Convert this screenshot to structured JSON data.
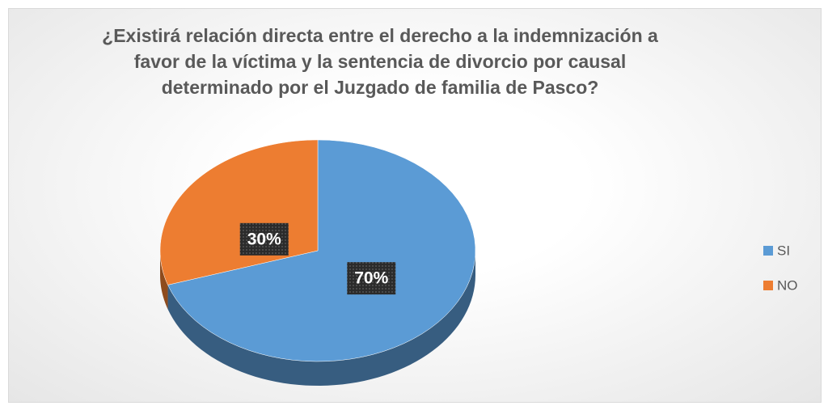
{
  "chart_data": {
    "type": "pie",
    "title": "¿Existirá relación directa entre el derecho a la indemnización a favor de la víctima y la sentencia de divorcio por causal determinado por el Juzgado de familia de Pasco?",
    "categories": [
      "SI",
      "NO"
    ],
    "values": [
      70,
      30
    ],
    "value_labels": [
      "70%",
      "30%"
    ],
    "colors": [
      "#5b9bd5",
      "#ed7d31"
    ],
    "legend": "right",
    "three_d": true
  }
}
